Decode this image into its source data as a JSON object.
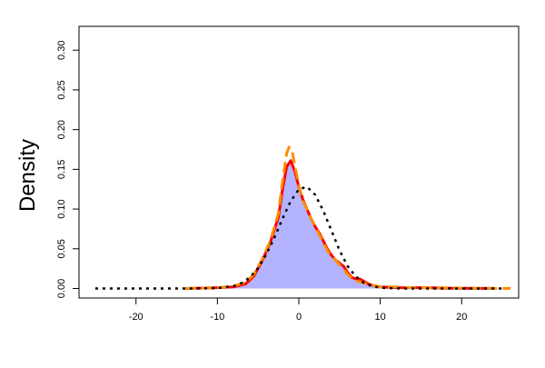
{
  "chart_data": {
    "type": "area",
    "title": "",
    "xlabel": "",
    "ylabel": "Density",
    "xlim": [
      -27,
      27
    ],
    "ylim": [
      -0.012,
      0.33
    ],
    "x_ticks": [
      -20,
      -10,
      0,
      10,
      20
    ],
    "y_ticks": [
      0.0,
      0.05,
      0.1,
      0.15,
      0.2,
      0.25,
      0.3
    ],
    "x_tick_labels": [
      "-20",
      "-10",
      "0",
      "10",
      "20"
    ],
    "y_tick_labels": [
      "0.00",
      "0.05",
      "0.10",
      "0.15",
      "0.20",
      "0.25",
      "0.30"
    ],
    "grid": false,
    "legend": "none",
    "series": [
      {
        "style": "filled-area",
        "color": "#b3b3ff",
        "x": [
          -14,
          -10,
          -8,
          -6.5,
          -5.5,
          -4.5,
          -3.5,
          -2.5,
          -2,
          -1.5,
          -1,
          -0.5,
          0,
          0.5,
          1,
          1.5,
          2,
          2.5,
          3,
          3.5,
          4,
          4.5,
          5,
          5.5,
          6,
          6.5,
          7,
          7.5,
          8,
          8.5,
          9,
          10,
          12,
          14,
          16,
          18,
          20,
          22,
          24
        ],
        "y": [
          0.0,
          0.001,
          0.002,
          0.006,
          0.016,
          0.035,
          0.058,
          0.09,
          0.125,
          0.153,
          0.16,
          0.148,
          0.128,
          0.112,
          0.1,
          0.088,
          0.078,
          0.07,
          0.06,
          0.05,
          0.042,
          0.036,
          0.032,
          0.028,
          0.02,
          0.014,
          0.01,
          0.009,
          0.007,
          0.005,
          0.003,
          0.002,
          0.001,
          0.001,
          0.001,
          0.0005,
          0.0003,
          0.0002,
          0.0001
        ]
      },
      {
        "style": "solid",
        "color": "#ff0000",
        "x": [
          -14,
          -10,
          -8,
          -6.5,
          -5.5,
          -4.5,
          -3.5,
          -2.5,
          -2,
          -1.5,
          -1,
          -0.5,
          0,
          0.5,
          1,
          1.5,
          2,
          2.5,
          3,
          3.5,
          4,
          4.5,
          5,
          5.5,
          6,
          6.5,
          7,
          7.5,
          8,
          8.5,
          9,
          10,
          12,
          14,
          16,
          18,
          20,
          22,
          24
        ],
        "y": [
          0.0,
          0.001,
          0.002,
          0.006,
          0.016,
          0.035,
          0.058,
          0.09,
          0.125,
          0.153,
          0.161,
          0.148,
          0.128,
          0.112,
          0.1,
          0.088,
          0.078,
          0.07,
          0.06,
          0.05,
          0.042,
          0.036,
          0.032,
          0.028,
          0.02,
          0.014,
          0.012,
          0.012,
          0.009,
          0.006,
          0.004,
          0.002,
          0.001,
          0.001,
          0.001,
          0.0005,
          0.0003,
          0.0002,
          0.0001
        ]
      },
      {
        "style": "dashed",
        "color": "#ff8c00",
        "x": [
          -14,
          -10,
          -8,
          -6.5,
          -5.5,
          -4.5,
          -3.5,
          -2.5,
          -2,
          -1.5,
          -1.2,
          -0.8,
          -0.5,
          0,
          0.5,
          1,
          1.5,
          2,
          2.5,
          3,
          3.5,
          4,
          4.5,
          5,
          5.5,
          6,
          6.5,
          7,
          8,
          9,
          10,
          12,
          14,
          16,
          18,
          20,
          22,
          24,
          26
        ],
        "y": [
          0.0,
          0.001,
          0.003,
          0.008,
          0.018,
          0.037,
          0.06,
          0.095,
          0.135,
          0.17,
          0.178,
          0.172,
          0.155,
          0.13,
          0.11,
          0.1,
          0.088,
          0.078,
          0.068,
          0.058,
          0.048,
          0.04,
          0.036,
          0.03,
          0.024,
          0.018,
          0.013,
          0.01,
          0.007,
          0.004,
          0.002,
          0.002,
          0.001,
          0.001,
          0.001,
          0.0005,
          0.0003,
          0.0002,
          0.0001
        ]
      },
      {
        "style": "dotted",
        "color": "#000000",
        "x": [
          -25,
          -20,
          -15,
          -12,
          -10,
          -8,
          -7,
          -6,
          -5,
          -4,
          -3,
          -2,
          -1,
          0,
          1,
          2,
          3,
          4,
          5,
          6,
          7,
          8,
          9,
          10,
          12,
          15,
          20,
          25
        ],
        "y": [
          0.0,
          0.0,
          0.0,
          0.0001,
          0.0005,
          0.003,
          0.007,
          0.014,
          0.026,
          0.043,
          0.064,
          0.088,
          0.11,
          0.125,
          0.128,
          0.118,
          0.098,
          0.073,
          0.048,
          0.028,
          0.015,
          0.007,
          0.003,
          0.001,
          0.0001,
          0.0,
          0.0,
          0.0
        ]
      }
    ]
  }
}
